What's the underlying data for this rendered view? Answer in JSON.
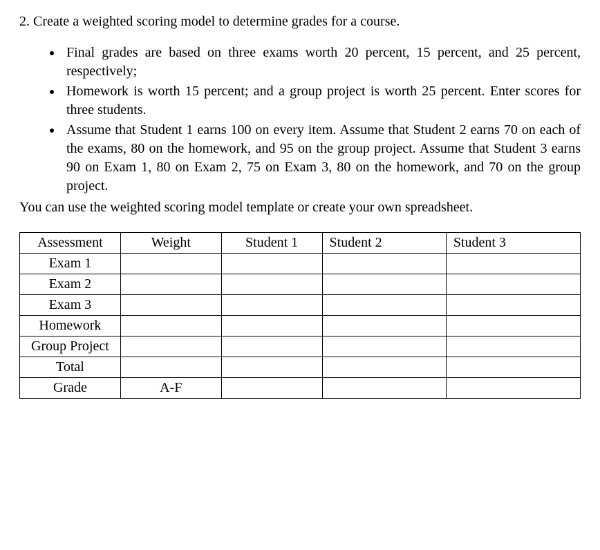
{
  "question": {
    "number": "2.",
    "title": "Create a weighted scoring model to determine grades for a course."
  },
  "bullets": [
    "Final grades are based on three exams worth 20 percent, 15 percent, and 25 percent, respectively;",
    "Homework is worth 15 percent; and a group project is worth 25 percent. Enter scores for three students.",
    "Assume that Student 1 earns 100 on every item. Assume that Student 2 earns 70 on each of the exams, 80 on the homework, and 95 on the group project. Assume that Student 3 earns 90 on Exam 1, 80 on Exam 2, 75 on Exam 3, 80 on the homework, and 70 on the group project."
  ],
  "closing_text": "You can use the weighted scoring model template or create your own spreadsheet.",
  "table": {
    "headers": {
      "assessment": "Assessment",
      "weight": "Weight",
      "student1": "Student 1",
      "student2": "Student 2",
      "student3": "Student 3"
    },
    "rows": [
      {
        "assessment": "Exam 1",
        "weight": "",
        "student1": "",
        "student2": "",
        "student3": ""
      },
      {
        "assessment": "Exam 2",
        "weight": "",
        "student1": "",
        "student2": "",
        "student3": ""
      },
      {
        "assessment": "Exam 3",
        "weight": "",
        "student1": "",
        "student2": "",
        "student3": ""
      },
      {
        "assessment": "Homework",
        "weight": "",
        "student1": "",
        "student2": "",
        "student3": ""
      },
      {
        "assessment": "Group Project",
        "weight": "",
        "student1": "",
        "student2": "",
        "student3": ""
      },
      {
        "assessment": "Total",
        "weight": "",
        "student1": "",
        "student2": "",
        "student3": ""
      },
      {
        "assessment": "Grade",
        "weight": "A-F",
        "student1": "",
        "student2": "",
        "student3": ""
      }
    ]
  },
  "styling": {
    "font_family": "Times New Roman",
    "font_size_pt": 15,
    "text_color": "#000000",
    "background_color": "#ffffff",
    "border_color": "#000000",
    "table_width_pct": 100
  }
}
